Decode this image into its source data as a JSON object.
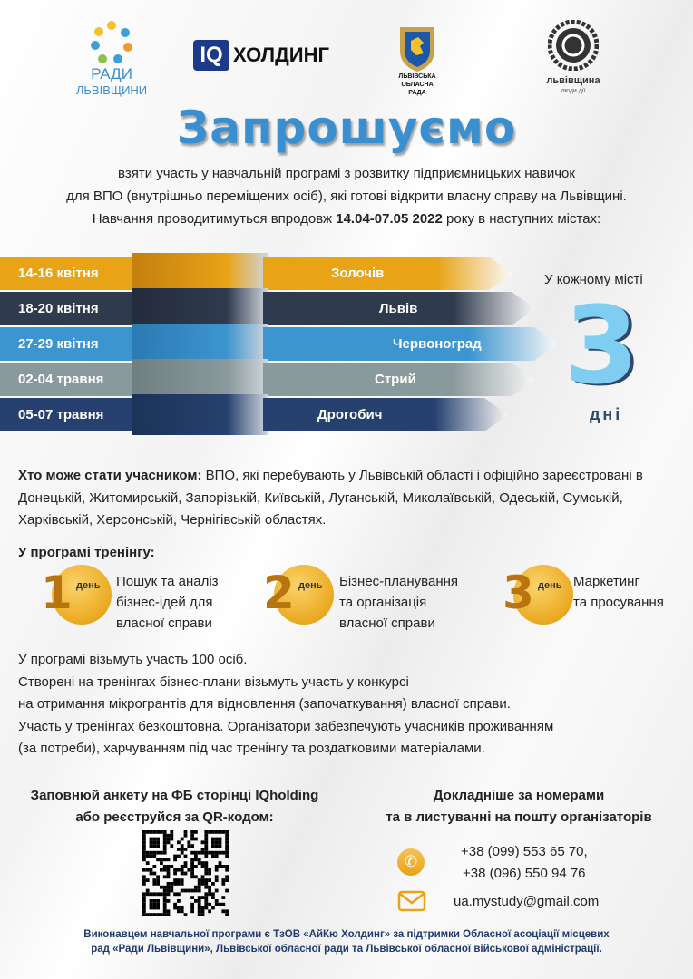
{
  "logos": {
    "radi": {
      "line1": "РАДИ",
      "line2": "ЛЬВІВЩИНИ"
    },
    "iq": {
      "box": "IQ",
      "text": "ХОЛДИНГ"
    },
    "rada": {
      "line1": "ЛЬВІВСЬКА",
      "line2": "ОБЛАСНА",
      "line3": "РАДА"
    },
    "lvivshchyna": {
      "name": "львівщина",
      "tagline": "люди дії"
    }
  },
  "title": "Запрошуємо",
  "intro": {
    "line1": "взяти участь у навчальній програмі з розвитку підприємницьких навичок",
    "line2": "для ВПО (внутрішньо переміщених осіб), які готові відкрити власну справу на Львівщині.",
    "line3_pre": "Навчання проводитимуться впродовж ",
    "line3_bold": "14.04-07.05 2022",
    "line3_post": " року в наступних містах:"
  },
  "schedule": [
    {
      "dates": "14-16 квітня",
      "city": "Золочів",
      "color": "#e8a317"
    },
    {
      "dates": "18-20 квітня",
      "city": "Львів",
      "color": "#2f3a4e"
    },
    {
      "dates": "27-29 квітня",
      "city": "Червоноград",
      "color": "#3d95cf"
    },
    {
      "dates": "02-04 травня",
      "city": "Стрий",
      "color": "#8a999b"
    },
    {
      "dates": "05-07 травня",
      "city": "Дрогобич",
      "color": "#26416f"
    }
  ],
  "each_city": {
    "label": "У кожному місті",
    "number": "3",
    "unit": "дні"
  },
  "who": {
    "bold": "Хто може стати учасником:",
    "text": " ВПО, які перебувають у Львівській області і офіційно зареєстровані в Донецькій, Житомирській, Запорізькій, Київській, Луганській, Миколаївській, Одеській, Сумській, Харківській, Херсонській, Чернігівській областях."
  },
  "program": {
    "heading": "У програмі тренінгу:",
    "days": [
      {
        "num": "1",
        "label": "день",
        "text": [
          "Пошук та аналіз",
          "бізнес-ідей для",
          "власної справи"
        ]
      },
      {
        "num": "2",
        "label": "день",
        "text": [
          "Бізнес-планування",
          "та організація",
          "власної справи"
        ]
      },
      {
        "num": "3",
        "label": "день",
        "text": [
          "Маркетинг",
          "та просування"
        ]
      }
    ]
  },
  "details": [
    "У програмі візьмуть участь 100 осіб.",
    "Створені на тренінгах бізнес-плани візьмуть участь у конкурсі",
    "на отримання мікрогрантів для відновлення (започаткування) власної справи.",
    "Участь у тренінгах безкоштовна. Організатори забезпечують учасників проживанням",
    "(за потреби), харчуванням під час тренінгу та роздатковими матеріалами."
  ],
  "register": {
    "line1": "Заповнюй анкету на ФБ сторінці IQholding",
    "line2": "або реєструйся за QR-кодом:"
  },
  "contacts": {
    "line1": "Докладніше за номерами",
    "line2": "та в листуванні на пошту організаторів",
    "phone1": "+38 (099) 553 65 70,",
    "phone2": "+38 (096) 550 94 76",
    "email": "ua.mystudy@gmail.com"
  },
  "footer": {
    "line1": "Виконавцем навчальної програми є ТзОВ «АйКю Холдинг» за підтримки Обласної асоціації місцевих",
    "line2": "рад «Ради Львівщини», Львівської обласної ради та Львівської обласної військової адміністрації."
  },
  "colors": {
    "accent_blue": "#3a8fd0",
    "gold": "#e8a317",
    "footer_text": "#1f3a6b"
  }
}
